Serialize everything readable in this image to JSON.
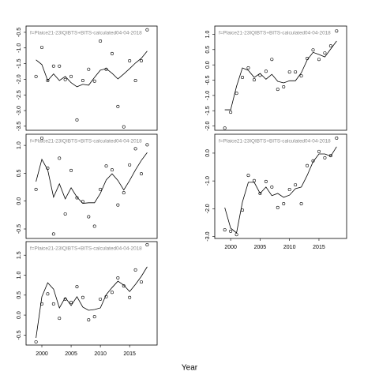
{
  "xlabel": "Year",
  "chart_data": [
    {
      "type": "scatter",
      "title": "f=Plaice21-23IQIBTS+BITS-calculated04-04-2018",
      "x": [
        1999,
        2000,
        2001,
        2002,
        2003,
        2004,
        2005,
        2006,
        2007,
        2008,
        2009,
        2010,
        2011,
        2012,
        2013,
        2014,
        2015,
        2016,
        2017,
        2018
      ],
      "series": [
        {
          "type": "scatter",
          "color": "#000000",
          "values": [
            -1.91,
            -0.98,
            -2.04,
            -1.58,
            -1.58,
            -2.01,
            -1.91,
            -3.3,
            -2.04,
            -1.68,
            -2.06,
            -0.78,
            -1.68,
            -1.18,
            -2.87,
            -3.52,
            -1.41,
            -2.04,
            -1.41,
            -0.42
          ]
        },
        {
          "type": "line",
          "color": "#000000",
          "values": [
            -1.38,
            -1.53,
            -2.04,
            -1.83,
            -2.04,
            -1.91,
            -2.11,
            -2.24,
            -2.16,
            -2.19,
            -1.94,
            -1.71,
            -1.66,
            -1.81,
            -1.99,
            -1.83,
            -1.66,
            -1.48,
            -1.33,
            -1.1
          ]
        }
      ],
      "xlim": [
        1997.3,
        2019.7
      ],
      "ylim": [
        -3.63,
        -0.3
      ],
      "yticks": [
        -0.5,
        {
          "value": -1,
          "label": "-1.0"
        },
        -1.5,
        {
          "value": -2,
          "label": "-2.0"
        },
        -2.5,
        {
          "value": -3,
          "label": "-3.0"
        },
        -3.5
      ]
    },
    {
      "type": "scatter",
      "title": "f=Plaice21-23IQIBTS+BITS-calculated04-04-2018",
      "x": [
        1999,
        2000,
        2001,
        2002,
        2003,
        2004,
        2005,
        2006,
        2007,
        2008,
        2009,
        2010,
        2011,
        2012,
        2013,
        2014,
        2015,
        2016,
        2017,
        2018
      ],
      "series": [
        {
          "type": "scatter",
          "color": "#000000",
          "values": [
            0.21,
            1.13,
            0.59,
            -0.59,
            0.77,
            -0.23,
            0.55,
            0.06,
            -0.01,
            -0.28,
            -0.45,
            0.21,
            0.63,
            0.56,
            -0.07,
            0.15,
            0.65,
            0.94,
            0.49,
            1.01
          ]
        },
        {
          "type": "line",
          "color": "#000000",
          "values": [
            0.35,
            0.75,
            0.56,
            0.07,
            0.31,
            0.04,
            0.24,
            0.07,
            -0.04,
            -0.03,
            -0.03,
            0.14,
            0.38,
            0.49,
            0.37,
            0.2,
            0.37,
            0.56,
            0.73,
            0.87
          ]
        }
      ],
      "xlim": [
        1997.3,
        2019.7
      ],
      "ylim": [
        -0.67,
        1.2
      ],
      "yticks": [
        {
          "value": 1,
          "label": "1.0"
        },
        0.5,
        {
          "value": 0,
          "label": "0.0"
        },
        -0.5
      ]
    },
    {
      "type": "scatter",
      "title": "f=Plaice21-23IQIBTS+BITS-calculated04-04-2018",
      "x": [
        1999,
        2000,
        2001,
        2002,
        2003,
        2004,
        2005,
        2006,
        2007,
        2008,
        2009,
        2010,
        2011,
        2012,
        2013,
        2014,
        2015,
        2016,
        2017,
        2018
      ],
      "series": [
        {
          "type": "scatter",
          "color": "#000000",
          "values": [
            -0.67,
            0.28,
            0.53,
            0.28,
            -0.08,
            0.4,
            0.32,
            0.71,
            0.44,
            -0.12,
            -0.04,
            0.4,
            0.46,
            0.57,
            0.93,
            0.73,
            0.44,
            1.13,
            0.83,
            1.76
          ]
        },
        {
          "type": "line",
          "color": "#000000",
          "values": [
            -0.57,
            0.46,
            0.81,
            0.65,
            0.18,
            0.44,
            0.24,
            0.46,
            0.2,
            0.12,
            0.14,
            0.18,
            0.51,
            0.69,
            0.85,
            0.75,
            0.59,
            0.77,
            0.97,
            1.21
          ]
        }
      ],
      "xlim": [
        1997.3,
        2019.7
      ],
      "ylim": [
        -0.75,
        1.84
      ],
      "xticks": [
        2000,
        2005,
        2010,
        2015
      ],
      "yticks": [
        1.5,
        {
          "value": 1,
          "label": "1.0"
        },
        0.5,
        {
          "value": 0,
          "label": "0.0"
        },
        -0.5
      ]
    },
    {
      "type": "scatter",
      "title": "f=Plaice21-23IQIBTS+BITS-calculated04-04-2018",
      "x": [
        1999,
        2000,
        2001,
        2002,
        2003,
        2004,
        2005,
        2006,
        2007,
        2008,
        2009,
        2010,
        2011,
        2012,
        2013,
        2014,
        2015,
        2016,
        2017,
        2018
      ],
      "series": [
        {
          "type": "scatter",
          "color": "#000000",
          "values": [
            -2.07,
            -1.55,
            -0.93,
            -0.41,
            -0.1,
            -0.49,
            -0.34,
            -0.21,
            0.18,
            -0.8,
            -0.72,
            -0.23,
            -0.23,
            -0.36,
            0.21,
            0.49,
            0.18,
            0.39,
            0.62,
            1.11
          ]
        },
        {
          "type": "line",
          "color": "#000000",
          "values": [
            -1.47,
            -1.47,
            -0.7,
            -0.1,
            -0.18,
            -0.41,
            -0.28,
            -0.47,
            -0.31,
            -0.54,
            -0.59,
            -0.52,
            -0.52,
            -0.26,
            0.16,
            0.41,
            0.34,
            0.26,
            0.52,
            0.78
          ]
        }
      ],
      "xlim": [
        1997.3,
        2019.7
      ],
      "ylim": [
        -2.14,
        1.27
      ],
      "yticks": [
        {
          "value": 1,
          "label": "1.0"
        },
        0.5,
        {
          "value": 0,
          "label": "0.0"
        },
        -0.5,
        {
          "value": -1,
          "label": "-1.0"
        },
        -1.5,
        {
          "value": -2,
          "label": "-2.0"
        }
      ]
    },
    {
      "type": "scatter",
      "title": "f=Plaice21-23IQIBTS+BITS-calculated04-04-2018",
      "x": [
        1999,
        2000,
        2001,
        2002,
        2003,
        2004,
        2005,
        2006,
        2007,
        2008,
        2009,
        2010,
        2011,
        2012,
        2013,
        2014,
        2015,
        2016,
        2017,
        2018
      ],
      "series": [
        {
          "type": "scatter",
          "color": "#000000",
          "values": [
            -2.76,
            -2.81,
            -2.93,
            -2.05,
            -0.8,
            -0.99,
            -1.45,
            -1.02,
            -1.22,
            -1.96,
            -1.82,
            -1.31,
            -1.14,
            -1.82,
            -0.45,
            -0.28,
            0.06,
            -0.17,
            -0.09,
            0.54
          ]
        },
        {
          "type": "line",
          "color": "#000000",
          "values": [
            -1.96,
            -2.7,
            -2.87,
            -1.76,
            -1.05,
            -1.05,
            -1.45,
            -1.22,
            -1.53,
            -1.45,
            -1.59,
            -1.51,
            -1.28,
            -1.22,
            -0.8,
            -0.31,
            -0.03,
            -0.03,
            -0.11,
            0.23
          ]
        }
      ],
      "xlim": [
        1997.3,
        2019.7
      ],
      "ylim": [
        -3.07,
        0.68
      ],
      "xticks": [
        2000,
        2005,
        2010,
        2015
      ],
      "yticks": [
        {
          "value": 0,
          "label": "0.0"
        },
        {
          "value": -1,
          "label": "-1.0"
        },
        {
          "value": -2,
          "label": "-2.0"
        },
        {
          "value": -3,
          "label": "-3.0"
        }
      ]
    }
  ]
}
